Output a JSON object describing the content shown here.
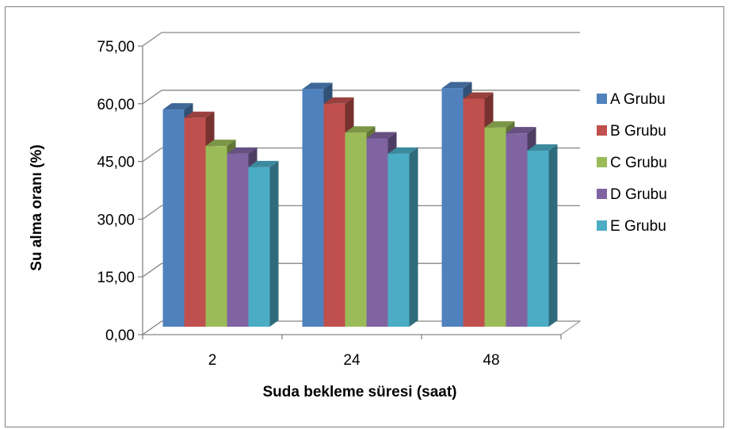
{
  "chart_data": {
    "type": "bar",
    "style": "3d-clustered-column",
    "categories": [
      "2",
      "24",
      "48"
    ],
    "series": [
      {
        "name": "A Grubu",
        "color": "#4F81BD",
        "values": [
          58.5,
          63.8,
          64.0
        ]
      },
      {
        "name": "B Grubu",
        "color": "#C0504D",
        "values": [
          56.3,
          60.0,
          61.3
        ]
      },
      {
        "name": "C Grubu",
        "color": "#9BBB59",
        "values": [
          49.0,
          52.5,
          53.8
        ]
      },
      {
        "name": "D Grubu",
        "color": "#8064A2",
        "values": [
          47.0,
          51.0,
          52.3
        ]
      },
      {
        "name": "E Grubu",
        "color": "#4BACC6",
        "values": [
          43.5,
          47.0,
          47.8
        ]
      }
    ],
    "xlabel": "Suda bekleme süresi (saat)",
    "ylabel": "Su alma oranı (%)",
    "ylim": [
      0,
      75
    ],
    "yticks": [
      "0,00",
      "15,00",
      "30,00",
      "45,00",
      "60,00",
      "75,00"
    ],
    "grid": true,
    "legend": "right"
  }
}
